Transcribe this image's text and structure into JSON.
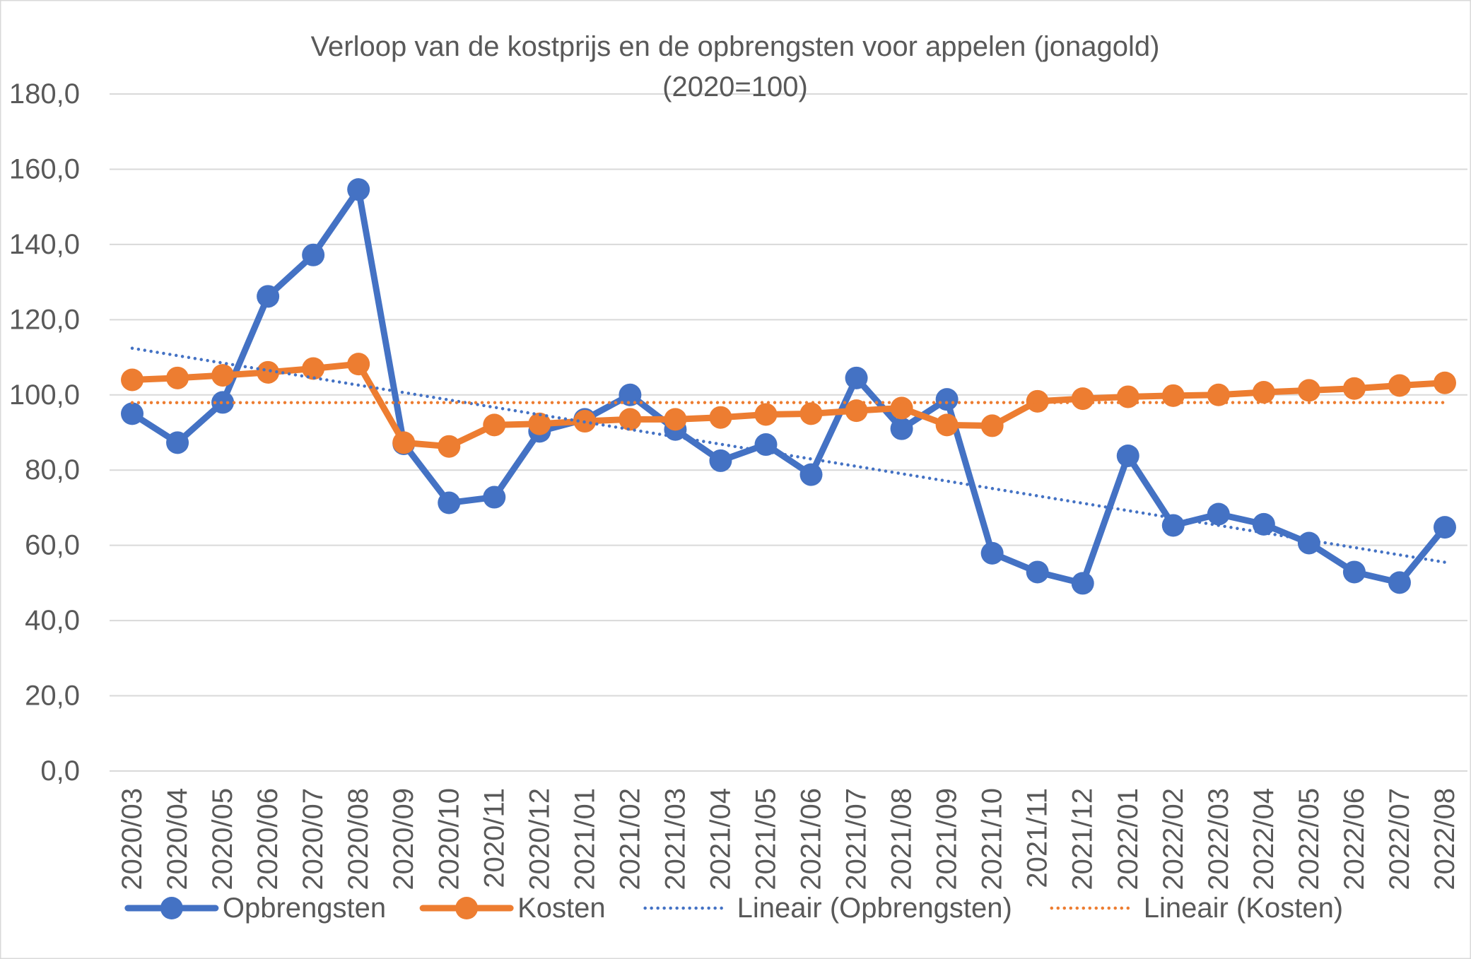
{
  "chart_data": {
    "type": "line",
    "title_lines": [
      "Verloop van de kostprijs en de opbrengsten voor appelen (jonagold)",
      "(2020=100)"
    ],
    "categories": [
      "2020/03",
      "2020/04",
      "2020/05",
      "2020/06",
      "2020/07",
      "2020/08",
      "2020/09",
      "2020/10",
      "2020/11",
      "2020/12",
      "2021/01",
      "2021/02",
      "2021/03",
      "2021/04",
      "2021/05",
      "2021/06",
      "2021/07",
      "2021/08",
      "2021/09",
      "2021/10",
      "2021/11",
      "2021/12",
      "2022/01",
      "2022/02",
      "2022/03",
      "2022/04",
      "2022/05",
      "2022/06",
      "2022/07",
      "2022/08"
    ],
    "series": [
      {
        "name": "Opbrengsten",
        "color": "#4472C4",
        "trendline": "linear",
        "values": [
          95.0,
          87.3,
          98.0,
          126.2,
          137.2,
          154.6,
          87.0,
          71.3,
          72.8,
          90.3,
          93.5,
          100.0,
          90.8,
          82.5,
          86.8,
          78.8,
          104.5,
          91.0,
          98.8,
          57.9,
          52.9,
          49.9,
          83.8,
          65.3,
          68.3,
          65.6,
          60.6,
          52.9,
          50.1,
          64.8
        ]
      },
      {
        "name": "Kosten",
        "color": "#ED7D31",
        "trendline": "linear",
        "values": [
          104.0,
          104.5,
          105.2,
          106.0,
          107.0,
          108.2,
          87.3,
          86.3,
          92.0,
          92.3,
          93.0,
          93.5,
          93.5,
          94.0,
          94.8,
          95.0,
          95.8,
          96.5,
          92.0,
          91.8,
          98.3,
          99.0,
          99.5,
          99.8,
          100.0,
          100.7,
          101.2,
          101.7,
          102.5,
          103.2
        ]
      }
    ],
    "ylim": [
      0,
      180
    ],
    "yticks": [
      0,
      20,
      40,
      60,
      80,
      100,
      120,
      140,
      160,
      180
    ],
    "ytick_labels": [
      "0,0",
      "20,0",
      "40,0",
      "60,0",
      "80,0",
      "100,0",
      "120,0",
      "140,0",
      "160,0",
      "180,0"
    ],
    "grid": {
      "horizontal": true,
      "vertical": false
    },
    "legend": {
      "position": "bottom",
      "items": [
        {
          "series": 0,
          "trendline": false
        },
        {
          "series": 1,
          "trendline": false
        },
        {
          "series": 0,
          "trendline": true,
          "label": "Lineair (Opbrengsten)"
        },
        {
          "series": 1,
          "trendline": true,
          "label": "Lineair (Kosten)"
        }
      ]
    }
  }
}
